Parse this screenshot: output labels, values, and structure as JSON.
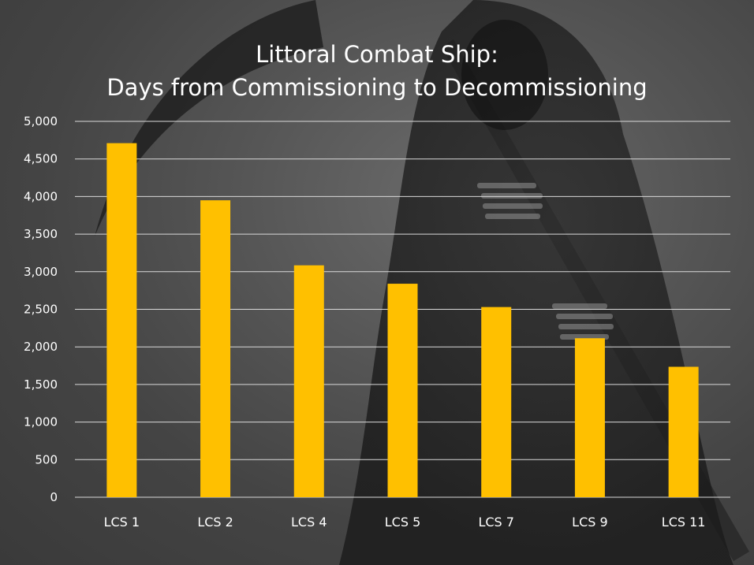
{
  "chart_data": {
    "type": "bar",
    "title": [
      "Littoral Combat Ship:",
      "Days from Commissioning to Decommissioning"
    ],
    "xlabel": "",
    "ylabel": "",
    "categories": [
      "LCS 1",
      "LCS 2",
      "LCS 4",
      "LCS 5",
      "LCS 7",
      "LCS 9",
      "LCS 11"
    ],
    "values": [
      4710,
      3950,
      3085,
      2840,
      2530,
      2115,
      1735
    ],
    "ylim": [
      0,
      5000
    ],
    "yticks": [
      0,
      500,
      1000,
      1500,
      2000,
      2500,
      3000,
      3500,
      4000,
      4500,
      5000
    ],
    "ytick_labels": [
      "0",
      "500",
      "1,000",
      "1,500",
      "2,000",
      "2,500",
      "3,000",
      "3,500",
      "4,000",
      "4,500",
      "5,000"
    ],
    "grid": true,
    "legend": "none",
    "colors": {
      "bar": "#ffc000",
      "grid": "#d9d9d9",
      "text": "#ffffff"
    }
  },
  "background": {
    "description_icon": "grim-reaper-illustration"
  }
}
